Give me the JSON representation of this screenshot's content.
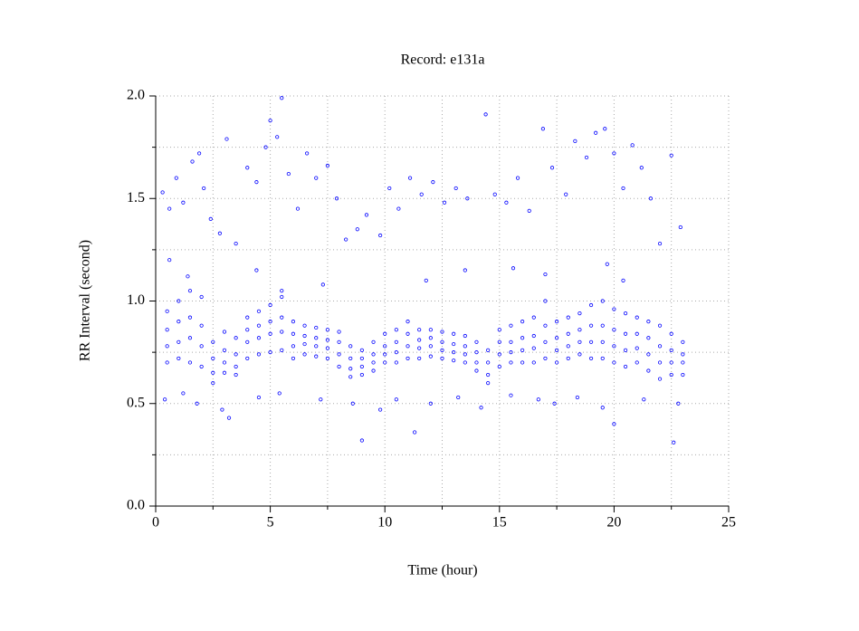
{
  "chart_data": {
    "type": "scatter",
    "title": "Record:  e131a",
    "x_label": "Time (hour)",
    "y_label": "RR Interval (second)",
    "color": "#0000ff",
    "grid": true,
    "xlim": [
      0,
      25
    ],
    "ylim": [
      0,
      2
    ],
    "xticks": [
      0,
      5,
      10,
      15,
      20,
      25
    ],
    "yticks": [
      {
        "value": 0,
        "label": "0.0"
      },
      {
        "value": 0.5,
        "label": "0.5"
      },
      {
        "value": 1,
        "label": "1.0"
      },
      {
        "value": 1.5,
        "label": "1.5"
      },
      {
        "value": 2,
        "label": "2.0"
      }
    ],
    "xminorticks": [
      2.5,
      7.5,
      12.5,
      17.5,
      22.5
    ],
    "yminorticks": [
      0.25,
      0.75,
      1.25,
      1.75
    ],
    "x": [
      0.5,
      0.5,
      0.5,
      0.5,
      1,
      1,
      1,
      1,
      1.5,
      1.5,
      1.5,
      1.5,
      2,
      2,
      2,
      2,
      2.5,
      2.5,
      2.5,
      2.5,
      3,
      3,
      3,
      3,
      3.5,
      3.5,
      3.5,
      3.5,
      4,
      4,
      4,
      4,
      4.5,
      4.5,
      4.5,
      4.5,
      5,
      5,
      5,
      5,
      5.5,
      5.5,
      5.5,
      5.5,
      6,
      6,
      6,
      6,
      6.5,
      6.5,
      6.5,
      6.5,
      7,
      7,
      7,
      7,
      7.5,
      7.5,
      7.5,
      7.5,
      8,
      8,
      8,
      8,
      8.5,
      8.5,
      8.5,
      8.5,
      9,
      9,
      9,
      9,
      9.5,
      9.5,
      9.5,
      9.5,
      10,
      10,
      10,
      10,
      10.5,
      10.5,
      10.5,
      10.5,
      11,
      11,
      11,
      11,
      11.5,
      11.5,
      11.5,
      11.5,
      12,
      12,
      12,
      12,
      12.5,
      12.5,
      12.5,
      12.5,
      13,
      13,
      13,
      13,
      13.5,
      13.5,
      13.5,
      13.5,
      14,
      14,
      14,
      14,
      14.5,
      14.5,
      14.5,
      14.5,
      15,
      15,
      15,
      15,
      15.5,
      15.5,
      15.5,
      15.5,
      16,
      16,
      16,
      16,
      16.5,
      16.5,
      16.5,
      16.5,
      17,
      17,
      17,
      17,
      17.5,
      17.5,
      17.5,
      17.5,
      18,
      18,
      18,
      18,
      18.5,
      18.5,
      18.5,
      18.5,
      19,
      19,
      19,
      19,
      19.5,
      19.5,
      19.5,
      19.5,
      20,
      20,
      20,
      20,
      20.5,
      20.5,
      20.5,
      20.5,
      21,
      21,
      21,
      21,
      21.5,
      21.5,
      21.5,
      21.5,
      22,
      22,
      22,
      22,
      22.5,
      22.5,
      22.5,
      22.5,
      23,
      23,
      23,
      23,
      0.3,
      0.6,
      0.9,
      1.2,
      1.6,
      1.9,
      2.1,
      2.4,
      2.8,
      3.1,
      3.5,
      4.0,
      4.4,
      4.8,
      5.0,
      5.3,
      5.5,
      5.8,
      6.2,
      6.6,
      7.0,
      7.5,
      7.9,
      8.3,
      8.8,
      9.2,
      9.8,
      10.2,
      10.6,
      11.1,
      11.6,
      12.1,
      12.6,
      13.1,
      13.6,
      14.4,
      14.8,
      15.3,
      15.8,
      16.3,
      16.9,
      17.3,
      17.9,
      18.3,
      18.8,
      19.2,
      19.6,
      20.0,
      20.4,
      20.8,
      21.2,
      21.6,
      22.0,
      22.5,
      22.9,
      0.4,
      1.2,
      1.8,
      2.9,
      3.2,
      4.5,
      5.4,
      7.2,
      8.6,
      9.0,
      9.8,
      10.5,
      11.3,
      12.0,
      13.2,
      14.2,
      15.5,
      16.7,
      17.4,
      18.4,
      19.5,
      20.0,
      21.3,
      22.6,
      22.8,
      0.6,
      1.4,
      4.4,
      5.5,
      7.3,
      11.8,
      13.5,
      15.6,
      17.0,
      19.7,
      20.4
    ],
    "values": [
      0.7,
      0.78,
      0.86,
      0.95,
      0.72,
      0.8,
      0.9,
      1.0,
      0.7,
      0.82,
      0.92,
      1.05,
      0.68,
      0.78,
      0.88,
      1.02,
      0.6,
      0.65,
      0.72,
      0.8,
      0.65,
      0.7,
      0.76,
      0.85,
      0.64,
      0.68,
      0.74,
      0.82,
      0.72,
      0.8,
      0.86,
      0.92,
      0.74,
      0.82,
      0.88,
      0.95,
      0.75,
      0.84,
      0.9,
      0.98,
      0.76,
      0.85,
      0.92,
      1.02,
      0.72,
      0.78,
      0.84,
      0.9,
      0.74,
      0.79,
      0.83,
      0.88,
      0.73,
      0.78,
      0.82,
      0.87,
      0.72,
      0.77,
      0.81,
      0.86,
      0.68,
      0.74,
      0.8,
      0.85,
      0.63,
      0.67,
      0.72,
      0.78,
      0.64,
      0.68,
      0.72,
      0.76,
      0.66,
      0.7,
      0.74,
      0.8,
      0.7,
      0.74,
      0.78,
      0.84,
      0.7,
      0.75,
      0.8,
      0.86,
      0.72,
      0.78,
      0.84,
      0.9,
      0.72,
      0.77,
      0.81,
      0.86,
      0.73,
      0.78,
      0.82,
      0.86,
      0.72,
      0.76,
      0.8,
      0.85,
      0.71,
      0.75,
      0.79,
      0.84,
      0.7,
      0.74,
      0.78,
      0.83,
      0.66,
      0.7,
      0.75,
      0.8,
      0.6,
      0.64,
      0.7,
      0.76,
      0.68,
      0.74,
      0.8,
      0.86,
      0.7,
      0.75,
      0.8,
      0.88,
      0.7,
      0.76,
      0.82,
      0.9,
      0.7,
      0.77,
      0.83,
      0.92,
      0.72,
      0.8,
      0.88,
      1.0,
      0.7,
      0.76,
      0.82,
      0.9,
      0.72,
      0.78,
      0.84,
      0.92,
      0.74,
      0.8,
      0.86,
      0.94,
      0.72,
      0.8,
      0.88,
      0.98,
      0.72,
      0.8,
      0.88,
      1.0,
      0.7,
      0.78,
      0.86,
      0.96,
      0.68,
      0.76,
      0.84,
      0.94,
      0.7,
      0.77,
      0.84,
      0.92,
      0.66,
      0.74,
      0.82,
      0.9,
      0.62,
      0.7,
      0.78,
      0.88,
      0.64,
      0.7,
      0.76,
      0.84,
      0.64,
      0.7,
      0.74,
      0.8,
      1.53,
      1.45,
      1.6,
      1.48,
      1.68,
      1.72,
      1.55,
      1.4,
      1.33,
      1.79,
      1.28,
      1.65,
      1.58,
      1.75,
      1.88,
      1.8,
      1.99,
      1.62,
      1.45,
      1.72,
      1.6,
      1.66,
      1.5,
      1.3,
      1.35,
      1.42,
      1.32,
      1.55,
      1.45,
      1.6,
      1.52,
      1.58,
      1.48,
      1.55,
      1.5,
      1.91,
      1.52,
      1.48,
      1.6,
      1.44,
      1.84,
      1.65,
      1.52,
      1.78,
      1.7,
      1.82,
      1.84,
      1.72,
      1.55,
      1.76,
      1.65,
      1.5,
      1.28,
      1.71,
      1.36,
      0.52,
      0.55,
      0.5,
      0.47,
      0.43,
      0.53,
      0.55,
      0.52,
      0.5,
      0.32,
      0.47,
      0.52,
      0.36,
      0.5,
      0.53,
      0.48,
      0.54,
      0.52,
      0.5,
      0.53,
      0.48,
      0.4,
      0.52,
      0.31,
      0.5,
      1.2,
      1.12,
      1.15,
      1.05,
      1.08,
      1.1,
      1.15,
      1.16,
      1.13,
      1.18,
      1.1
    ]
  }
}
